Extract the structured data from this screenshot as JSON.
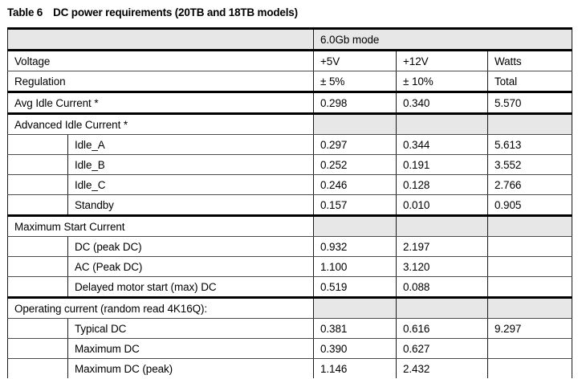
{
  "caption": {
    "number": "Table 6",
    "text": "DC power requirements (20TB and 18TB models)"
  },
  "colors": {
    "page_bg": "#ffffff",
    "text": "#000000",
    "shaded_cell": "#e7e7e7",
    "border_heavy": "#000000",
    "border_line": "#1a1a1a",
    "border_thin": "#4a4a4a"
  },
  "table": {
    "rows": [
      {
        "type": "mode",
        "label": "6.0Gb mode",
        "values": [
          "",
          "",
          ""
        ],
        "shaded": true,
        "bottom": "thick"
      },
      {
        "type": "plain",
        "label": "Voltage",
        "values": [
          "+5V",
          "+12V",
          "Watts"
        ],
        "shaded": false,
        "bottom": "thin"
      },
      {
        "type": "plain",
        "label": "Regulation",
        "values": [
          "± 5%",
          "± 10%",
          "Total"
        ],
        "shaded": false,
        "bottom": "thick"
      },
      {
        "type": "plain",
        "label": "Avg Idle Current *",
        "values": [
          "0.298",
          "0.340",
          "5.570"
        ],
        "shaded": false,
        "bottom": "thick"
      },
      {
        "type": "section",
        "label": "Advanced Idle Current *",
        "values": [
          "",
          "",
          ""
        ],
        "shaded": true,
        "bottom": "thin"
      },
      {
        "type": "sub",
        "label": "Idle_A",
        "values": [
          "0.297",
          "0.344",
          "5.613"
        ],
        "shaded": false,
        "bottom": "thin"
      },
      {
        "type": "sub",
        "label": "Idle_B",
        "values": [
          "0.252",
          "0.191",
          "3.552"
        ],
        "shaded": false,
        "bottom": "thin"
      },
      {
        "type": "sub",
        "label": "Idle_C",
        "values": [
          "0.246",
          "0.128",
          "2.766"
        ],
        "shaded": false,
        "bottom": "thin"
      },
      {
        "type": "sub",
        "label": "Standby",
        "values": [
          "0.157",
          "0.010",
          "0.905"
        ],
        "shaded": false,
        "bottom": "thick"
      },
      {
        "type": "section",
        "label": "Maximum Start Current",
        "values": [
          "",
          "",
          ""
        ],
        "shaded": true,
        "bottom": "thin"
      },
      {
        "type": "sub",
        "label": "DC (peak DC)",
        "values": [
          "0.932",
          "2.197",
          ""
        ],
        "shaded": false,
        "bottom": "thin"
      },
      {
        "type": "sub",
        "label": "AC (Peak DC)",
        "values": [
          "1.100",
          "3.120",
          ""
        ],
        "shaded": false,
        "bottom": "thin"
      },
      {
        "type": "sub",
        "label": "Delayed motor start (max) DC",
        "values": [
          "0.519",
          "0.088",
          ""
        ],
        "shaded": false,
        "bottom": "thick"
      },
      {
        "type": "section",
        "label": "Operating current (random read 4K16Q):",
        "values": [
          "",
          "",
          ""
        ],
        "shaded": true,
        "bottom": "thin"
      },
      {
        "type": "sub",
        "label": "Typical DC",
        "values": [
          "0.381",
          "0.616",
          "9.297"
        ],
        "shaded": false,
        "bottom": "thin"
      },
      {
        "type": "sub",
        "label": "Maximum DC",
        "values": [
          "0.390",
          "0.627",
          ""
        ],
        "shaded": false,
        "bottom": "thin"
      },
      {
        "type": "sub",
        "label": "Maximum DC (peak)",
        "values": [
          "1.146",
          "2.432",
          ""
        ],
        "shaded": false,
        "bottom": "none"
      }
    ]
  }
}
